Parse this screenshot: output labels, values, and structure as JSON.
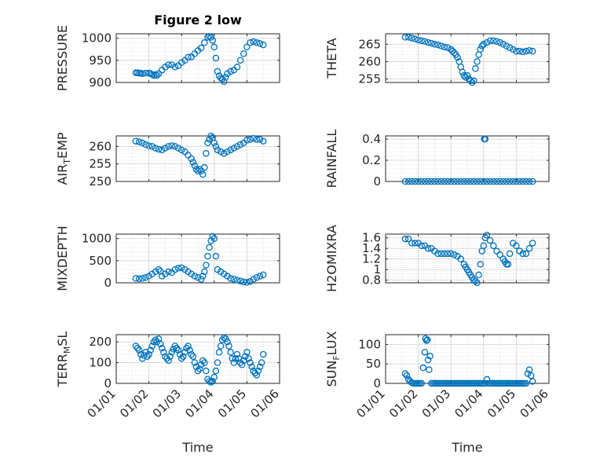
{
  "colors": {
    "marker": "#0072BD",
    "axes": "#262626",
    "grid": "#b0b0b0",
    "background": "#ffffff"
  },
  "chart_data": [
    {
      "type": "scatter",
      "title": "Figure 2 low",
      "xlabel": "",
      "ylabel": "PRESSURE",
      "ylim": [
        900,
        1010
      ],
      "xlim": [
        1,
        6
      ],
      "yticks": [
        900,
        950,
        1000
      ],
      "ytick_labels": [
        "900",
        "950",
        "1000"
      ],
      "x": [
        1.6,
        1.65,
        1.7,
        1.75,
        1.8,
        1.9,
        2.0,
        2.05,
        2.1,
        2.15,
        2.2,
        2.25,
        2.3,
        2.4,
        2.5,
        2.6,
        2.7,
        2.8,
        2.9,
        3.0,
        3.1,
        3.2,
        3.3,
        3.4,
        3.5,
        3.6,
        3.7,
        3.8,
        3.85,
        3.9,
        3.95,
        4.0,
        4.05,
        4.1,
        4.15,
        4.2,
        4.25,
        4.3,
        4.35,
        4.4,
        4.5,
        4.6,
        4.7,
        4.8,
        4.9,
        5.0,
        5.1,
        5.2,
        5.3,
        5.4,
        5.5
      ],
      "y": [
        922,
        922,
        921,
        921,
        920,
        921,
        921,
        920,
        918,
        916,
        918,
        916,
        920,
        928,
        935,
        940,
        940,
        935,
        938,
        945,
        950,
        957,
        958,
        965,
        972,
        978,
        990,
        1002,
        1004,
        1002,
        995,
        980,
        955,
        925,
        915,
        910,
        908,
        902,
        912,
        920,
        925,
        928,
        935,
        950,
        965,
        980,
        990,
        992,
        990,
        988,
        985
      ],
      "yoffset_labels": false
    },
    {
      "type": "scatter",
      "title": "",
      "xlabel": "",
      "ylabel": "THETA",
      "ylim": [
        254,
        268
      ],
      "xlim": [
        1,
        6
      ],
      "yticks": [
        255,
        260,
        265
      ],
      "ytick_labels": [
        "255",
        "260",
        "265"
      ],
      "x": [
        1.6,
        1.7,
        1.8,
        1.9,
        2.0,
        2.1,
        2.2,
        2.3,
        2.4,
        2.5,
        2.6,
        2.7,
        2.8,
        2.9,
        3.0,
        3.05,
        3.1,
        3.15,
        3.2,
        3.25,
        3.3,
        3.35,
        3.4,
        3.45,
        3.5,
        3.55,
        3.6,
        3.65,
        3.7,
        3.75,
        3.8,
        3.85,
        3.9,
        3.95,
        4.0,
        4.1,
        4.2,
        4.3,
        4.4,
        4.5,
        4.6,
        4.7,
        4.8,
        4.9,
        5.0,
        5.1,
        5.2,
        5.3,
        5.4,
        5.5
      ],
      "y": [
        267,
        267,
        266.8,
        266.5,
        266.2,
        266,
        265.8,
        265.5,
        265.3,
        265,
        264.8,
        264.5,
        264.2,
        264,
        263.5,
        263,
        262.5,
        262,
        261.2,
        260,
        258.5,
        257,
        256,
        255.5,
        256,
        255,
        254.5,
        254,
        254.5,
        258,
        260,
        262,
        263.5,
        264.5,
        265,
        265.5,
        266,
        266,
        265.8,
        265.5,
        265,
        264.5,
        264,
        263.5,
        263,
        263,
        262.8,
        263,
        263.2,
        263
      ]
    },
    {
      "type": "scatter",
      "title": "",
      "xlabel": "",
      "ylabel": "AIR_TEMP",
      "ylabel_parts": {
        "base": "AIR",
        "sub": "T",
        "rest": "EMP"
      },
      "ylim": [
        250,
        263
      ],
      "xlim": [
        1,
        6
      ],
      "yticks": [
        250,
        255,
        260
      ],
      "ytick_labels": [
        "250",
        "255",
        "260"
      ],
      "x": [
        1.6,
        1.7,
        1.8,
        1.9,
        2.0,
        2.1,
        2.2,
        2.3,
        2.4,
        2.5,
        2.6,
        2.7,
        2.8,
        2.9,
        3.0,
        3.1,
        3.2,
        3.3,
        3.35,
        3.4,
        3.45,
        3.5,
        3.55,
        3.6,
        3.65,
        3.7,
        3.75,
        3.8,
        3.85,
        3.9,
        3.95,
        4.0,
        4.05,
        4.1,
        4.2,
        4.3,
        4.4,
        4.5,
        4.6,
        4.7,
        4.8,
        4.9,
        5.0,
        5.1,
        5.2,
        5.3,
        5.4,
        5.5
      ],
      "y": [
        261.5,
        261.3,
        261,
        260.5,
        260.2,
        260,
        259.5,
        259.2,
        259,
        259.5,
        260,
        260.2,
        260,
        259.5,
        259,
        258.5,
        257.5,
        256.5,
        255.5,
        254.5,
        253.5,
        253,
        253.5,
        253,
        252,
        254,
        258,
        261,
        262,
        263,
        262.5,
        261,
        260,
        259,
        258.5,
        258,
        258.5,
        259,
        259.5,
        260,
        260.5,
        261,
        261.8,
        262,
        262.3,
        262,
        262,
        261.5
      ]
    },
    {
      "type": "scatter",
      "title": "",
      "xlabel": "",
      "ylabel": "RAINFALL",
      "ylim": [
        0,
        0.43
      ],
      "xlim": [
        1,
        6
      ],
      "yticks": [
        0,
        0.2,
        0.4
      ],
      "ytick_labels": [
        "0",
        "0.2",
        "0.4"
      ],
      "x": [
        1.6,
        1.7,
        1.8,
        1.9,
        2.0,
        2.1,
        2.2,
        2.3,
        2.4,
        2.5,
        2.6,
        2.7,
        2.8,
        2.9,
        3.0,
        3.1,
        3.2,
        3.3,
        3.4,
        3.5,
        3.6,
        3.7,
        3.8,
        3.9,
        4.0,
        4.02,
        4.05,
        4.1,
        4.2,
        4.3,
        4.4,
        4.5,
        4.6,
        4.7,
        4.8,
        4.9,
        5.0,
        5.1,
        5.2,
        5.3,
        5.4,
        5.5
      ],
      "y": [
        0,
        0,
        0,
        0,
        0,
        0,
        0,
        0,
        0,
        0,
        0,
        0,
        0,
        0,
        0,
        0,
        0,
        0,
        0,
        0,
        0,
        0,
        0,
        0,
        0,
        0.4,
        0.4,
        0,
        0,
        0,
        0,
        0,
        0,
        0,
        0,
        0,
        0,
        0,
        0,
        0,
        0,
        0
      ]
    },
    {
      "type": "scatter",
      "title": "",
      "xlabel": "",
      "ylabel": "MIXDEPTH",
      "ylim": [
        0,
        1100
      ],
      "xlim": [
        1,
        6
      ],
      "yticks": [
        0,
        500,
        1000
      ],
      "ytick_labels": [
        "0",
        "500",
        "1000"
      ],
      "x": [
        1.6,
        1.7,
        1.8,
        1.9,
        2.0,
        2.1,
        2.2,
        2.3,
        2.35,
        2.4,
        2.5,
        2.6,
        2.7,
        2.8,
        2.9,
        3.0,
        3.1,
        3.2,
        3.3,
        3.4,
        3.5,
        3.6,
        3.65,
        3.7,
        3.75,
        3.8,
        3.85,
        3.9,
        3.95,
        4.0,
        4.05,
        4.1,
        4.2,
        4.3,
        4.4,
        4.5,
        4.6,
        4.7,
        4.8,
        4.9,
        5.0,
        5.1,
        5.2,
        5.3,
        5.4,
        5.5
      ],
      "y": [
        100,
        90,
        100,
        120,
        150,
        200,
        250,
        300,
        260,
        150,
        200,
        250,
        230,
        300,
        330,
        340,
        300,
        250,
        200,
        150,
        120,
        80,
        150,
        250,
        400,
        600,
        800,
        950,
        1050,
        1000,
        600,
        300,
        250,
        200,
        150,
        100,
        80,
        60,
        40,
        20,
        10,
        30,
        80,
        120,
        150,
        180
      ]
    },
    {
      "type": "scatter",
      "title": "",
      "xlabel": "",
      "ylabel": "H2OMIXRA",
      "ylim": [
        0.75,
        1.67
      ],
      "xlim": [
        1,
        6
      ],
      "yticks": [
        0.8,
        1.0,
        1.2,
        1.4,
        1.6
      ],
      "ytick_labels": [
        "0.8",
        "1",
        "1.2",
        "1.4",
        "1.6"
      ],
      "x": [
        1.6,
        1.7,
        1.8,
        1.9,
        2.0,
        2.1,
        2.2,
        2.3,
        2.4,
        2.5,
        2.6,
        2.7,
        2.8,
        2.9,
        3.0,
        3.1,
        3.2,
        3.3,
        3.4,
        3.45,
        3.5,
        3.55,
        3.6,
        3.65,
        3.7,
        3.75,
        3.8,
        3.85,
        3.9,
        3.95,
        4.0,
        4.05,
        4.1,
        4.2,
        4.3,
        4.4,
        4.5,
        4.6,
        4.65,
        4.7,
        4.75,
        4.8,
        4.9,
        5.0,
        5.1,
        5.2,
        5.3,
        5.4,
        5.5
      ],
      "y": [
        1.58,
        1.58,
        1.5,
        1.5,
        1.5,
        1.45,
        1.45,
        1.4,
        1.4,
        1.35,
        1.3,
        1.3,
        1.3,
        1.3,
        1.3,
        1.28,
        1.25,
        1.2,
        1.1,
        1.05,
        1.0,
        0.95,
        0.9,
        0.85,
        0.8,
        0.78,
        0.75,
        0.9,
        1.1,
        1.35,
        1.45,
        1.6,
        1.65,
        1.55,
        1.45,
        1.35,
        1.28,
        1.2,
        1.15,
        1.1,
        1.1,
        1.3,
        1.5,
        1.45,
        1.35,
        1.3,
        1.3,
        1.4,
        1.5
      ]
    },
    {
      "type": "scatter",
      "title": "",
      "xlabel": "Time",
      "ylabel": "TERR_MSL",
      "ylabel_parts": {
        "base": "TERR",
        "sub": "M",
        "rest": "SL"
      },
      "ylim": [
        0,
        235
      ],
      "xlim": [
        1,
        6
      ],
      "yticks": [
        0,
        100,
        200
      ],
      "ytick_labels": [
        "0",
        "100",
        "200"
      ],
      "xticks": [
        1,
        2,
        3,
        4,
        5,
        6
      ],
      "xtick_labels": [
        "01/01",
        "01/02",
        "01/03",
        "01/04",
        "01/05",
        "01/06"
      ],
      "x": [
        1.6,
        1.65,
        1.7,
        1.75,
        1.8,
        1.85,
        1.9,
        1.95,
        2.0,
        2.05,
        2.1,
        2.15,
        2.2,
        2.25,
        2.3,
        2.35,
        2.4,
        2.45,
        2.5,
        2.55,
        2.6,
        2.65,
        2.7,
        2.75,
        2.8,
        2.85,
        2.9,
        2.95,
        3.0,
        3.05,
        3.1,
        3.15,
        3.2,
        3.25,
        3.3,
        3.35,
        3.4,
        3.45,
        3.5,
        3.55,
        3.6,
        3.65,
        3.7,
        3.75,
        3.8,
        3.85,
        3.9,
        3.95,
        4.0,
        4.05,
        4.1,
        4.15,
        4.2,
        4.25,
        4.3,
        4.35,
        4.4,
        4.45,
        4.5,
        4.55,
        4.6,
        4.65,
        4.7,
        4.75,
        4.8,
        4.85,
        4.9,
        4.95,
        5.0,
        5.05,
        5.1,
        5.15,
        5.2,
        5.25,
        5.3,
        5.35,
        5.4,
        5.45,
        5.5
      ],
      "y": [
        180,
        170,
        160,
        140,
        120,
        135,
        150,
        130,
        140,
        160,
        180,
        200,
        210,
        200,
        215,
        190,
        170,
        150,
        130,
        120,
        110,
        130,
        150,
        165,
        180,
        170,
        160,
        140,
        120,
        130,
        150,
        170,
        180,
        160,
        140,
        130,
        100,
        80,
        60,
        70,
        90,
        110,
        100,
        60,
        20,
        10,
        5,
        10,
        30,
        60,
        100,
        150,
        180,
        210,
        220,
        215,
        200,
        180,
        150,
        120,
        100,
        120,
        140,
        120,
        100,
        90,
        110,
        130,
        150,
        120,
        100,
        80,
        60,
        50,
        40,
        60,
        80,
        100,
        140
      ]
    },
    {
      "type": "scatter",
      "title": "",
      "xlabel": "Time",
      "ylabel": "SUN_FLUX",
      "ylabel_parts": {
        "base": "SUN",
        "sub": "F",
        "rest": "LUX"
      },
      "ylim": [
        0,
        125
      ],
      "xlim": [
        1,
        6
      ],
      "yticks": [
        0,
        50,
        100
      ],
      "ytick_labels": [
        "0",
        "50",
        "100"
      ],
      "xticks": [
        1,
        2,
        3,
        4,
        5,
        6
      ],
      "xtick_labels": [
        "01/01",
        "01/02",
        "01/03",
        "01/04",
        "01/05",
        "01/06"
      ],
      "x": [
        1.6,
        1.65,
        1.7,
        1.75,
        1.8,
        1.85,
        1.9,
        1.95,
        2.0,
        2.05,
        2.1,
        2.15,
        2.2,
        2.22,
        2.25,
        2.28,
        2.3,
        2.33,
        2.36,
        2.4,
        2.45,
        2.5,
        2.55,
        2.6,
        2.65,
        2.7,
        2.75,
        2.8,
        2.85,
        2.9,
        2.95,
        3.0,
        3.05,
        3.1,
        3.15,
        3.2,
        3.25,
        3.3,
        3.35,
        3.4,
        3.45,
        3.5,
        3.55,
        3.6,
        3.65,
        3.7,
        3.75,
        3.8,
        3.85,
        3.9,
        3.95,
        4.0,
        4.05,
        4.1,
        4.15,
        4.2,
        4.25,
        4.3,
        4.35,
        4.4,
        4.45,
        4.5,
        4.55,
        4.6,
        4.65,
        4.7,
        4.75,
        4.8,
        4.85,
        4.9,
        4.95,
        5.0,
        5.05,
        5.1,
        5.15,
        5.2,
        5.25,
        5.3,
        5.35,
        5.4,
        5.45,
        5.5
      ],
      "y": [
        25,
        20,
        10,
        5,
        2,
        0,
        0,
        0,
        0,
        0,
        0,
        40,
        80,
        115,
        110,
        112,
        60,
        35,
        70,
        0,
        0,
        0,
        0,
        0,
        0,
        0,
        0,
        0,
        0,
        0,
        0,
        0,
        0,
        0,
        0,
        0,
        0,
        0,
        0,
        0,
        0,
        0,
        0,
        0,
        0,
        0,
        0,
        0,
        0,
        0,
        0,
        0,
        0,
        10,
        0,
        0,
        0,
        0,
        0,
        0,
        0,
        0,
        0,
        0,
        0,
        0,
        0,
        0,
        0,
        0,
        0,
        0,
        0,
        0,
        0,
        0,
        0,
        0,
        25,
        35,
        20,
        5
      ]
    }
  ]
}
